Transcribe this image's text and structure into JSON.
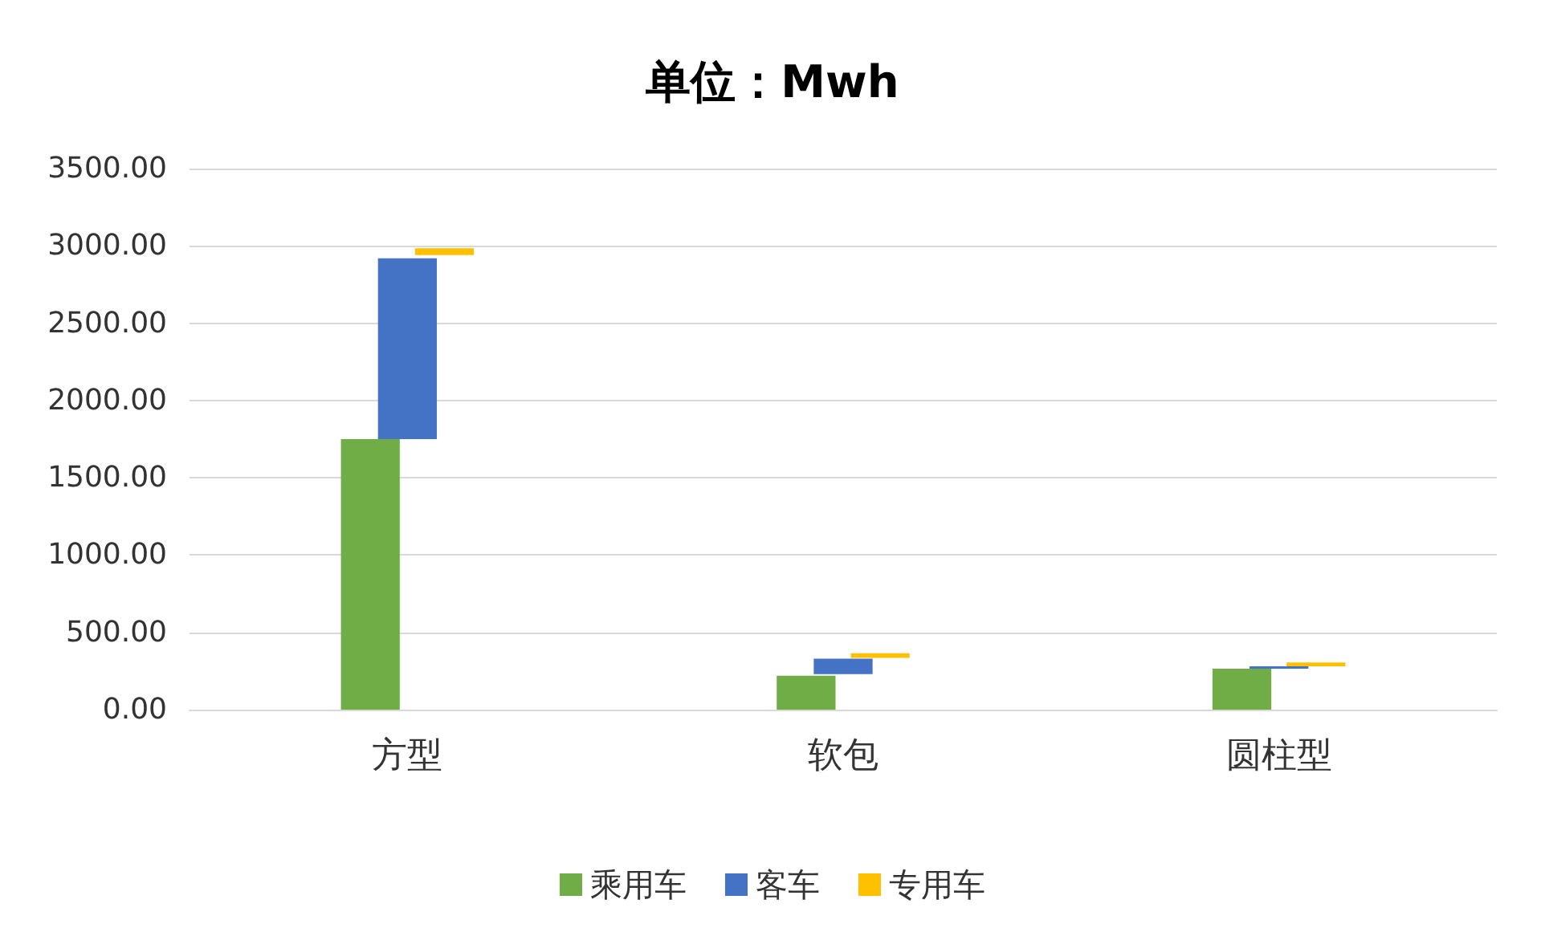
{
  "chart_data": {
    "type": "bar",
    "title": "单位：Mwh",
    "categories": [
      "方型",
      "软包",
      "圆柱型"
    ],
    "series": [
      {
        "name": "乘用车",
        "color": "#70ad47",
        "values": [
          1750,
          220,
          265
        ],
        "base": [
          0,
          0,
          0
        ]
      },
      {
        "name": "客车",
        "color": "#4472c4",
        "values": [
          1170,
          100,
          15
        ],
        "base": [
          1750,
          230,
          265
        ]
      },
      {
        "name": "专用车",
        "color": "#ffc000",
        "values": [
          45,
          30,
          25
        ],
        "base": [
          2940,
          335,
          280
        ]
      }
    ],
    "ylim": [
      0,
      3500
    ],
    "yticks": [
      {
        "value": 0,
        "label": "0.00"
      },
      {
        "value": 500,
        "label": "500.00"
      },
      {
        "value": 1000,
        "label": "1000.00"
      },
      {
        "value": 1500,
        "label": "1500.00"
      },
      {
        "value": 2000,
        "label": "2000.00"
      },
      {
        "value": 2500,
        "label": "2500.00"
      },
      {
        "value": 3000,
        "label": "3000.00"
      },
      {
        "value": 3500,
        "label": "3500.00"
      }
    ],
    "grid": "y",
    "legend": "bottom"
  }
}
